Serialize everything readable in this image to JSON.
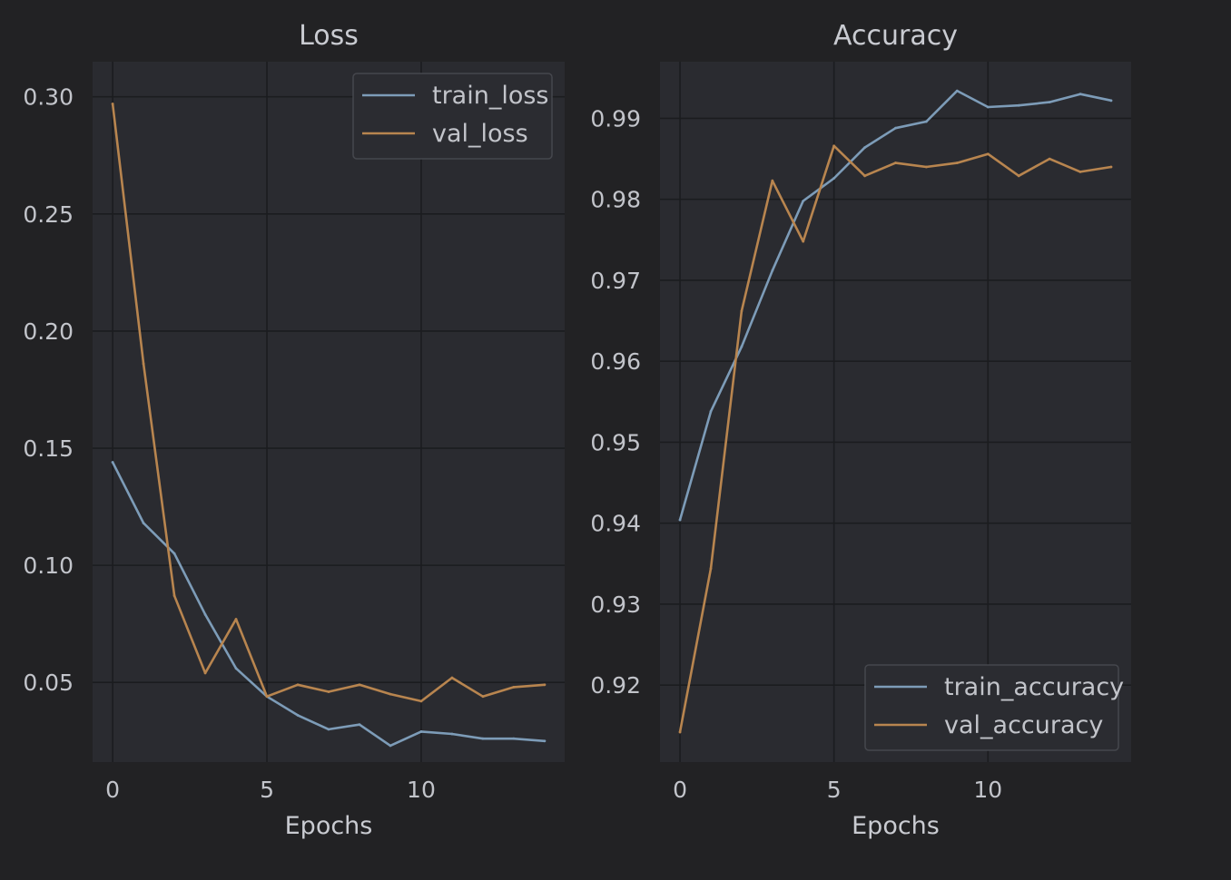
{
  "chart_data": [
    {
      "type": "line",
      "title": "Loss",
      "xlabel": "Epochs",
      "ylabel": "",
      "x": [
        0,
        1,
        2,
        3,
        4,
        5,
        6,
        7,
        8,
        9,
        10,
        11,
        12,
        13,
        14
      ],
      "xlim": [
        -0.65,
        14.65
      ],
      "ylim": [
        0.016,
        0.315
      ],
      "xticks": [
        0,
        5,
        10
      ],
      "yticks": [
        0.05,
        0.1,
        0.15,
        0.2,
        0.25,
        0.3
      ],
      "ytick_labels": [
        "0.05",
        "0.10",
        "0.15",
        "0.20",
        "0.25",
        "0.30"
      ],
      "grid": true,
      "legend_position": "top-right",
      "series": [
        {
          "name": "train_loss",
          "color": "#7d9cb8",
          "values": [
            0.144,
            0.118,
            0.105,
            0.079,
            0.056,
            0.044,
            0.036,
            0.03,
            0.032,
            0.023,
            0.029,
            0.028,
            0.026,
            0.026,
            0.025
          ]
        },
        {
          "name": "val_loss",
          "color": "#b8854f",
          "values": [
            0.297,
            0.186,
            0.087,
            0.054,
            0.077,
            0.044,
            0.049,
            0.046,
            0.049,
            0.045,
            0.042,
            0.052,
            0.044,
            0.048,
            0.049
          ]
        }
      ]
    },
    {
      "type": "line",
      "title": "Accuracy",
      "xlabel": "Epochs",
      "ylabel": "",
      "x": [
        0,
        1,
        2,
        3,
        4,
        5,
        6,
        7,
        8,
        9,
        10,
        11,
        12,
        13,
        14
      ],
      "xlim": [
        -0.65,
        14.65
      ],
      "ylim": [
        0.9105,
        0.997
      ],
      "xticks": [
        0,
        5,
        10
      ],
      "yticks": [
        0.92,
        0.93,
        0.94,
        0.95,
        0.96,
        0.97,
        0.98,
        0.99
      ],
      "ytick_labels": [
        "0.92",
        "0.93",
        "0.94",
        "0.95",
        "0.96",
        "0.97",
        "0.98",
        "0.99"
      ],
      "grid": true,
      "legend_position": "bottom-right",
      "series": [
        {
          "name": "train_accuracy",
          "color": "#7d9cb8",
          "values": [
            0.9404,
            0.9538,
            0.9618,
            0.9712,
            0.9798,
            0.9826,
            0.9864,
            0.9888,
            0.9896,
            0.9934,
            0.9914,
            0.9916,
            0.992,
            0.993,
            0.9922
          ]
        },
        {
          "name": "val_accuracy",
          "color": "#b8854f",
          "values": [
            0.9142,
            0.9344,
            0.9662,
            0.9823,
            0.9748,
            0.9866,
            0.9829,
            0.9845,
            0.984,
            0.9845,
            0.9856,
            0.9829,
            0.985,
            0.9834,
            0.984
          ]
        }
      ]
    }
  ]
}
